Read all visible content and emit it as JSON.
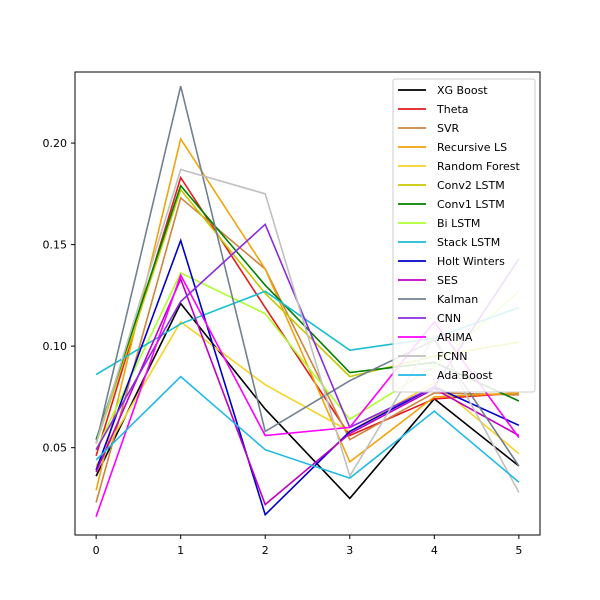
{
  "chart_data": {
    "type": "line",
    "x": [
      0,
      1,
      2,
      3,
      4,
      5
    ],
    "xlim": [
      -0.25,
      5.25
    ],
    "ylim": [
      0.007,
      0.235
    ],
    "xticks": [
      0,
      1,
      2,
      3,
      4,
      5
    ],
    "yticks": [
      0.05,
      0.1,
      0.15,
      0.2
    ],
    "ytick_labels": [
      "0.05",
      "0.10",
      "0.15",
      "0.20"
    ],
    "xtick_labels": [
      "0",
      "1",
      "2",
      "3",
      "4",
      "5"
    ],
    "grid": false,
    "legend_position": "top-right",
    "series": [
      {
        "name": "XG Boost",
        "color": "#000000",
        "values": [
          0.036,
          0.121,
          0.069,
          0.025,
          0.074,
          0.041
        ]
      },
      {
        "name": "Theta",
        "color": "#e41a1c",
        "values": [
          0.046,
          0.183,
          0.119,
          0.056,
          0.074,
          0.077
        ]
      },
      {
        "name": "SVR",
        "color": "#cd853f",
        "values": [
          0.023,
          0.173,
          0.138,
          0.054,
          0.077,
          0.076
        ]
      },
      {
        "name": "Recursive LS",
        "color": "#f0a30a",
        "values": [
          0.029,
          0.202,
          0.138,
          0.043,
          0.075,
          0.077
        ]
      },
      {
        "name": "Random Forest",
        "color": "#f5d327",
        "values": [
          0.041,
          0.112,
          0.081,
          0.058,
          0.082,
          0.047
        ]
      },
      {
        "name": "Conv2 LSTM",
        "color": "#c8c800",
        "values": [
          0.052,
          0.177,
          0.126,
          0.085,
          0.095,
          0.102
        ]
      },
      {
        "name": "Conv1 LSTM",
        "color": "#008000",
        "values": [
          0.054,
          0.179,
          0.13,
          0.087,
          0.092,
          0.073
        ]
      },
      {
        "name": "Bi LSTM",
        "color": "#adff2f",
        "values": [
          0.049,
          0.136,
          0.116,
          0.064,
          0.09,
          0.127
        ]
      },
      {
        "name": "Stack LSTM",
        "color": "#17becf",
        "values": [
          0.086,
          0.111,
          0.127,
          0.098,
          0.104,
          0.119
        ]
      },
      {
        "name": "Holt Winters",
        "color": "#0000cd",
        "values": [
          0.039,
          0.152,
          0.017,
          0.058,
          0.08,
          0.061
        ]
      },
      {
        "name": "SES",
        "color": "#c000c0",
        "values": [
          0.038,
          0.133,
          0.022,
          0.057,
          0.079,
          0.056
        ]
      },
      {
        "name": "Kalman",
        "color": "#708090",
        "values": [
          0.052,
          0.228,
          0.058,
          0.083,
          0.103,
          0.041
        ]
      },
      {
        "name": "CNN",
        "color": "#8a2be2",
        "values": [
          0.049,
          0.122,
          0.16,
          0.06,
          0.08,
          0.143
        ]
      },
      {
        "name": "ARIMA",
        "color": "#ff00ff",
        "values": [
          0.016,
          0.135,
          0.056,
          0.06,
          0.112,
          0.055
        ]
      },
      {
        "name": "FCNN",
        "color": "#c0c0c0",
        "values": [
          0.052,
          0.187,
          0.175,
          0.036,
          0.105,
          0.028
        ]
      },
      {
        "name": "Ada Boost",
        "color": "#1fb9e8",
        "values": [
          0.044,
          0.085,
          0.049,
          0.035,
          0.068,
          0.033
        ]
      }
    ]
  }
}
